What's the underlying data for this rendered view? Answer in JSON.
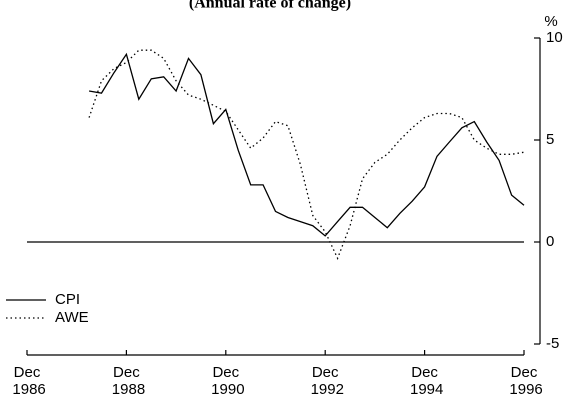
{
  "chart_data": {
    "type": "line",
    "subtitle": "(Annual rate of change)",
    "y_unit": "%",
    "x": [
      "Mar 1988",
      "Jun 1988",
      "Sep 1988",
      "Dec 1988",
      "Mar 1989",
      "Jun 1989",
      "Sep 1989",
      "Dec 1989",
      "Mar 1990",
      "Jun 1990",
      "Sep 1990",
      "Dec 1990",
      "Mar 1991",
      "Jun 1991",
      "Sep 1991",
      "Dec 1991",
      "Mar 1992",
      "Jun 1992",
      "Sep 1992",
      "Dec 1992",
      "Mar 1993",
      "Jun 1993",
      "Sep 1993",
      "Dec 1993",
      "Mar 1994",
      "Jun 1994",
      "Sep 1994",
      "Dec 1994",
      "Mar 1995",
      "Jun 1995",
      "Sep 1995",
      "Dec 1995",
      "Mar 1996",
      "Jun 1996",
      "Sep 1996",
      "Dec 1996"
    ],
    "series": [
      {
        "name": "CPI",
        "color": "#000000",
        "dash": "solid",
        "values": [
          7.4,
          7.3,
          8.3,
          9.2,
          7.0,
          8.0,
          8.1,
          7.4,
          9.0,
          8.2,
          5.8,
          6.5,
          4.5,
          2.8,
          2.8,
          1.5,
          1.2,
          1.0,
          0.8,
          0.3,
          1.0,
          1.7,
          1.7,
          1.2,
          0.7,
          1.4,
          2.0,
          2.7,
          4.2,
          4.9,
          5.6,
          5.9,
          4.9,
          4.0,
          2.3,
          1.8
        ]
      },
      {
        "name": "AWE",
        "color": "#000000",
        "dash": "dotted",
        "values": [
          6.1,
          7.9,
          8.5,
          8.8,
          9.4,
          9.4,
          9.0,
          7.9,
          7.2,
          7.0,
          6.7,
          6.4,
          5.5,
          4.6,
          5.1,
          5.9,
          5.7,
          3.8,
          1.3,
          0.5,
          -0.8,
          0.8,
          3.1,
          3.9,
          4.3,
          5.0,
          5.6,
          6.1,
          6.3,
          6.3,
          6.1,
          5.0,
          4.6,
          4.3,
          4.3,
          4.4
        ]
      }
    ],
    "xlim": [
      "Dec 1986",
      "Dec 1996"
    ],
    "xticks": [
      "Dec 1986",
      "Dec 1988",
      "Dec 1990",
      "Dec 1992",
      "Dec 1994",
      "Dec 1996"
    ],
    "ylim": [
      -5,
      10
    ],
    "yticks": [
      -5,
      0,
      5,
      10
    ],
    "y_axis_side": "right",
    "zero_line": true,
    "legend": "lower left"
  }
}
